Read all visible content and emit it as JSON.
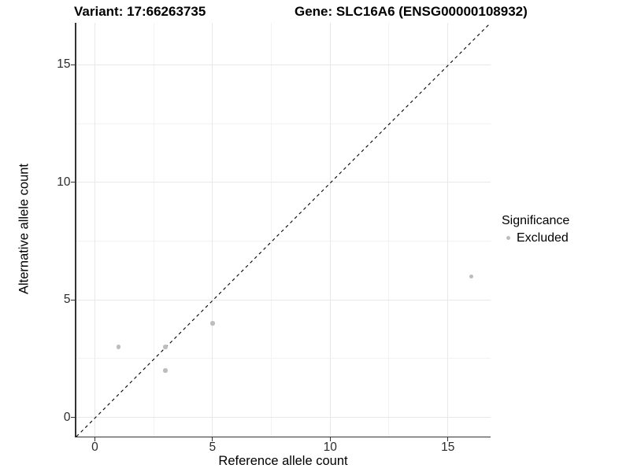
{
  "titles": {
    "variant": "Variant: 17:66263735",
    "gene": "Gene: SLC16A6 (ENSG00000108932)"
  },
  "legend": {
    "title": "Significance",
    "items": [
      {
        "label": "Excluded",
        "color": "#bdbdbd"
      }
    ]
  },
  "colors": {
    "point": "#bdbdbd",
    "grid_major": "#e8e8e8",
    "grid_minor": "#f3f3f3",
    "axis_line": "#333333",
    "reference_line": "#000000",
    "background": "#ffffff"
  },
  "chart_data": {
    "type": "scatter",
    "title_left": "Variant: 17:66263735",
    "title_right": "Gene: SLC16A6 (ENSG00000108932)",
    "xlabel": "Reference allele count",
    "ylabel": "Alternative allele count",
    "xlim": [
      -0.8,
      16.8
    ],
    "ylim": [
      -0.8,
      16.8
    ],
    "x_ticks": [
      0,
      5,
      10,
      15
    ],
    "y_ticks": [
      0,
      5,
      10,
      15
    ],
    "x_minor_ticks": [
      2.5,
      7.5,
      12.5
    ],
    "y_minor_ticks": [
      2.5,
      7.5,
      12.5
    ],
    "grid": true,
    "legend_position": "right",
    "series": [
      {
        "name": "Excluded",
        "color": "#bdbdbd",
        "points": [
          {
            "x": 1,
            "y": 3
          },
          {
            "x": 3,
            "y": 2
          },
          {
            "x": 3,
            "y": 3
          },
          {
            "x": 5,
            "y": 4
          },
          {
            "x": 16,
            "y": 6
          }
        ]
      }
    ],
    "reference_line": {
      "type": "identity",
      "slope": 1,
      "intercept": 0,
      "style": "dashed",
      "color": "#000000"
    }
  }
}
